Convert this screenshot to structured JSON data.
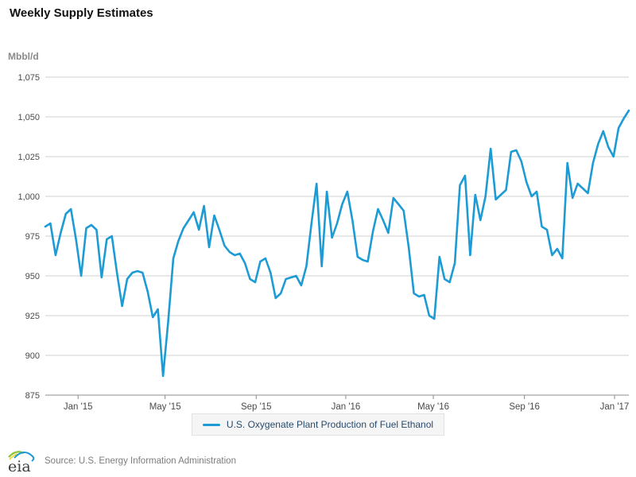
{
  "title": "Weekly Supply Estimates",
  "y_axis": {
    "unit": "Mbbl/d",
    "min": 875,
    "max": 1075,
    "tick_step": 25,
    "tick_labels": [
      "875",
      "900",
      "925",
      "950",
      "975",
      "1,000",
      "1,025",
      "1,050",
      "1,075"
    ]
  },
  "x_axis": {
    "tick_labels": [
      "Jan '15",
      "May '15",
      "Sep '15",
      "Jan '16",
      "May '16",
      "Sep '16",
      "Jan '17"
    ],
    "tick_weeks": [
      6.4,
      23.4,
      41.2,
      58.7,
      75.8,
      93.6,
      111.2
    ]
  },
  "legend": {
    "label": "U.S. Oxygenate Plant Production of Fuel Ethanol"
  },
  "footer": {
    "logo_text": "eia",
    "source": "Source: U.S. Energy Information Administration"
  },
  "colors": {
    "line": "#1d9bd5",
    "grid": "#d0d0d0",
    "axis": "#8c8c8c",
    "tick_text": "#4a4a4a",
    "legend_text": "#274b6d",
    "logo_green": "#8dc63f",
    "logo_yellow": "#f5d328",
    "logo_blue": "#1c9ad6"
  },
  "chart_data": {
    "type": "line",
    "title": "Weekly Supply Estimates",
    "ylabel": "Mbbl/d",
    "ylim": [
      875,
      1075
    ],
    "y_gridline_step": 25,
    "grid": "horizontal",
    "legend_position": "bottom",
    "frequency": "weekly",
    "x_range": "late Nov 2014 to mid Jan 2017",
    "x_tick_labels": [
      "Jan '15",
      "May '15",
      "Sep '15",
      "Jan '16",
      "May '16",
      "Sep '16",
      "Jan '17"
    ],
    "x_tick_week_positions": [
      6.4,
      23.4,
      41.2,
      58.7,
      75.8,
      93.6,
      111.2
    ],
    "series": [
      {
        "name": "U.S. Oxygenate Plant Production of Fuel Ethanol",
        "values": [
          981,
          983,
          963,
          977,
          989,
          992,
          973,
          950,
          980,
          982,
          979,
          949,
          973,
          975,
          952,
          931,
          948,
          952,
          953,
          952,
          940,
          924,
          929,
          887,
          921,
          961,
          972,
          980,
          985,
          990,
          979,
          994,
          968,
          988,
          979,
          969,
          965,
          963,
          964,
          958,
          948,
          946,
          959,
          961,
          952,
          936,
          939,
          948,
          949,
          950,
          944,
          956,
          983,
          1008,
          956,
          1003,
          974,
          983,
          995,
          1003,
          985,
          962,
          960,
          959,
          978,
          992,
          985,
          977,
          999,
          995,
          991,
          968,
          939,
          937,
          938,
          925,
          923,
          962,
          948,
          946,
          958,
          1007,
          1013,
          963,
          1001,
          985,
          1000,
          1030,
          998,
          1001,
          1004,
          1028,
          1029,
          1022,
          1009,
          1000,
          1003,
          981,
          979,
          963,
          967,
          961,
          1021,
          999,
          1008,
          1005,
          1002,
          1021,
          1033,
          1041,
          1031,
          1025,
          1043,
          1049,
          1054
        ]
      }
    ]
  }
}
